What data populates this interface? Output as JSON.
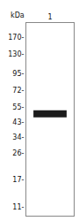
{
  "chart_data": {
    "type": "gel",
    "categories": [
      "1"
    ],
    "values": [
      49.5
    ],
    "heights": [
      5.5
    ],
    "color": "#1c1c1c",
    "ylabel": "kDa",
    "log": "y",
    "ylim": [
      9.5,
      215
    ],
    "yticks": [
      {
        "value": 170,
        "label": "170-"
      },
      {
        "value": 130,
        "label": "130-"
      },
      {
        "value": 95,
        "label": "95-"
      },
      {
        "value": 72,
        "label": "72-"
      },
      {
        "value": 55,
        "label": "55-"
      },
      {
        "value": 43,
        "label": "43-"
      },
      {
        "value": 34,
        "label": "34-"
      },
      {
        "value": 26,
        "label": "26-"
      },
      {
        "value": 17,
        "label": "17-"
      },
      {
        "value": 11,
        "label": "11-"
      }
    ],
    "grid": false
  }
}
